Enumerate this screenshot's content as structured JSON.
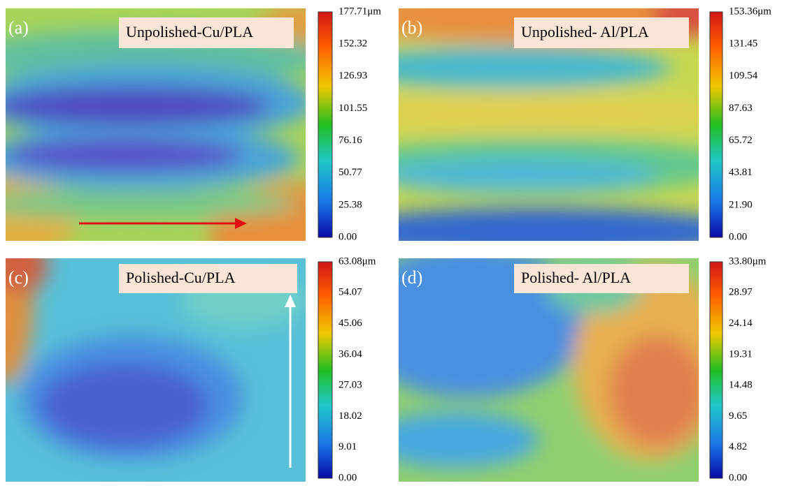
{
  "panels": [
    {
      "label": "(a)",
      "title": "Unpolished-Cu/PLA",
      "ticks": [
        "177.71μm",
        "152.32",
        "126.93",
        "101.55",
        "76.16",
        "50.77",
        "25.38",
        "0.00"
      ]
    },
    {
      "label": "(b)",
      "title": "Unpolished- Al/PLA",
      "ticks": [
        "153.36μm",
        "131.45",
        "109.54",
        "87.63",
        "65.72",
        "43.81",
        "21.90",
        "0.00"
      ]
    },
    {
      "label": "(c)",
      "title": "Polished-Cu/PLA",
      "ticks": [
        "63.08μm",
        "54.07",
        "45.06",
        "36.04",
        "27.03",
        "18.02",
        "9.01",
        "0.00"
      ]
    },
    {
      "label": "(d)",
      "title": "Polished- Al/PLA",
      "ticks": [
        "33.80μm",
        "28.97",
        "24.14",
        "19.31",
        "14.48",
        "9.65",
        "4.82",
        "0.00"
      ]
    }
  ]
}
